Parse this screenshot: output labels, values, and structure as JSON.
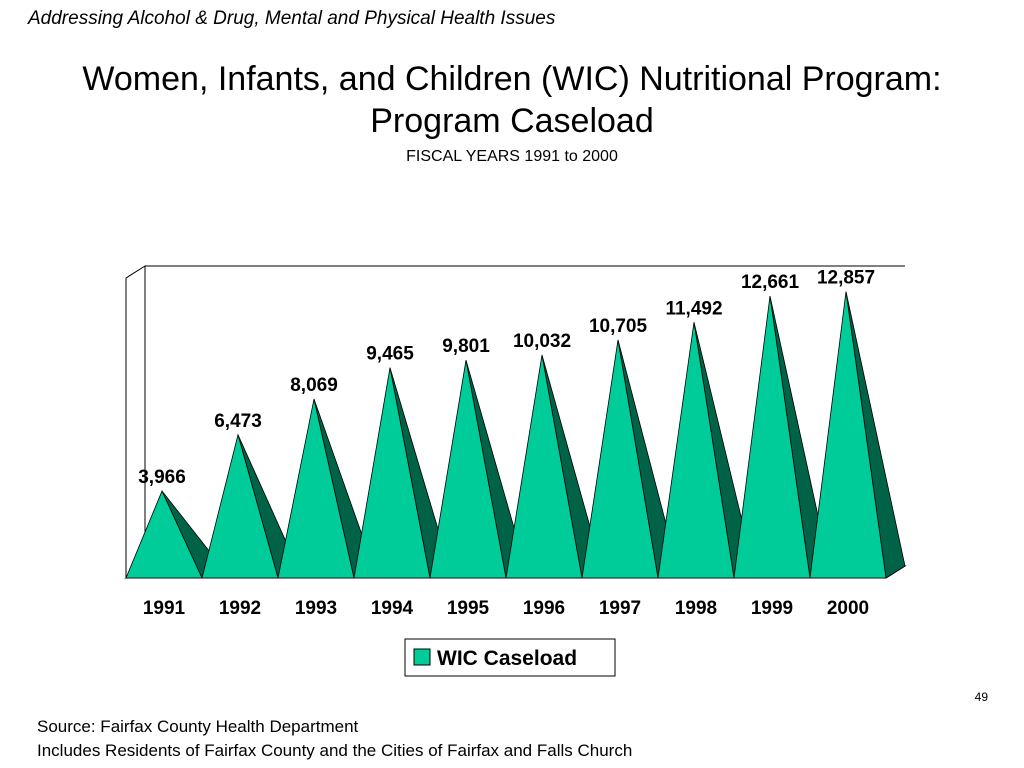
{
  "header": {
    "tag": "Addressing Alcohol & Drug, Mental and Physical Health Issues"
  },
  "page_number": "49",
  "footer": {
    "source": "Source:  Fairfax County Health Department",
    "note": "Includes Residents of Fairfax County and  the Cities of Fairfax and Falls Church"
  },
  "chart_data": {
    "type": "bar",
    "title": "Women, Infants, and Children (WIC) Nutritional Program: Program Caseload",
    "title_lines": [
      "Women, Infants, and Children (WIC) Nutritional Program:",
      "Program Caseload"
    ],
    "subtitle": "FISCAL YEARS 1991 to 2000",
    "xlabel": "",
    "ylabel": "",
    "categories": [
      "1991",
      "1992",
      "1993",
      "1994",
      "1995",
      "1996",
      "1997",
      "1998",
      "1999",
      "2000"
    ],
    "series": [
      {
        "name": "WIC Caseload",
        "values": [
          3966,
          6473,
          8069,
          9465,
          9801,
          10032,
          10705,
          11492,
          12661,
          12857
        ],
        "labels": [
          "3,966",
          "6,473",
          "8,069",
          "9,465",
          "9,801",
          "10,032",
          "10,705",
          "11,492",
          "12,661",
          "12,857"
        ]
      }
    ],
    "ylim": [
      0,
      14000
    ],
    "grid": false,
    "legend": "bottom-center",
    "mark_shape": "3d-pyramid",
    "colors": {
      "front": "#00cc99",
      "side": "#006347",
      "outline": "#000000"
    }
  }
}
